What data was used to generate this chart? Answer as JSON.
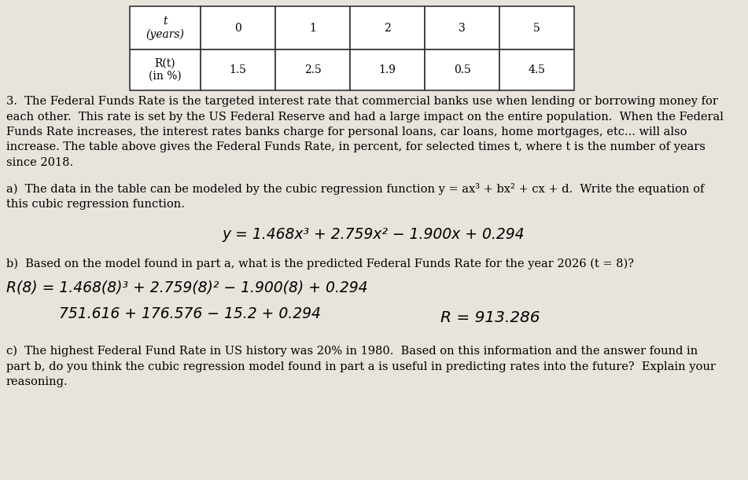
{
  "bg_color": "#e8e4dc",
  "table_bg": "#f0eeea",
  "table": {
    "t_values": [
      "0",
      "1",
      "2",
      "3",
      "5"
    ],
    "r_values": [
      "1.5",
      "2.5",
      "1.9",
      "0.5",
      "4.5"
    ]
  },
  "intro_text_lines": [
    "3.  The Federal Funds Rate is the targeted interest rate that commercial banks use when lending or borrowing money for",
    "each other.  This rate is set by the US Federal Reserve and had a large impact on the entire population.  When the Federal",
    "Funds Rate increases, the interest rates banks charge for personal loans, car loans, home mortgages, etc... will also",
    "increase. The table above gives the Federal Funds Rate, in percent, for selected times t, where t is the number of years",
    "since 2018."
  ],
  "part_a_lines": [
    "a)  The data in the table can be modeled by the cubic regression function y = ax³ + bx² + cx + d.  Write the equation of",
    "this cubic regression function."
  ],
  "equation_a": "y = 1.468x³ + 2.759x² − 1.900x + 0.294",
  "part_b_line": "b)  Based on the model found in part a, what is the predicted Federal Funds Rate for the year 2026 (t = 8)?",
  "calc_line1": "R(8) = 1.468(8)³ + 2.759(8)² − 1.900(8) + 0.294",
  "calc_line2": "751.616 + 176.576 − 15.2 + 0.294",
  "calc_result": "R = 913.286",
  "part_c_lines": [
    "c)  The highest Federal Fund Rate in US history was 20% in 1980.  Based on this information and the answer found in",
    "part b, do you think the cubic regression model found in part a is useful in predicting rates into the future?  Explain your",
    "reasoning."
  ],
  "font_size_body": 10.5,
  "font_size_handwriting": 13.5,
  "font_size_table": 10.0
}
